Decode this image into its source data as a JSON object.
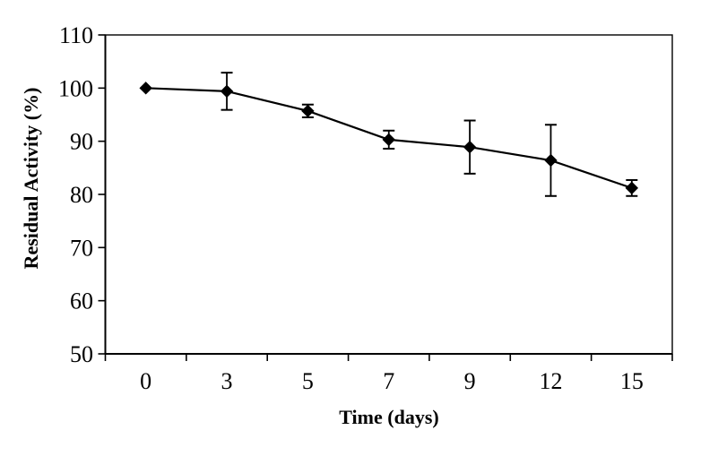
{
  "chart_data": {
    "type": "line",
    "title": "",
    "xlabel": "Time (days)",
    "ylabel": "Residual Activity (%)",
    "categories": [
      "0",
      "3",
      "5",
      "7",
      "9",
      "12",
      "15"
    ],
    "series": [
      {
        "name": "Residual activity",
        "values": [
          100.0,
          99.4,
          95.7,
          90.3,
          88.9,
          86.4,
          81.2
        ],
        "errors": [
          0,
          3.5,
          1.2,
          1.7,
          5.0,
          6.7,
          1.5
        ]
      }
    ],
    "ylim": [
      50,
      110
    ],
    "yticks": [
      110,
      100,
      90,
      80,
      70,
      60,
      50
    ],
    "grid": false,
    "legend": false,
    "marker": "diamond",
    "line_color": "#000000",
    "marker_color": "#000000",
    "background_color": "#ffffff"
  }
}
